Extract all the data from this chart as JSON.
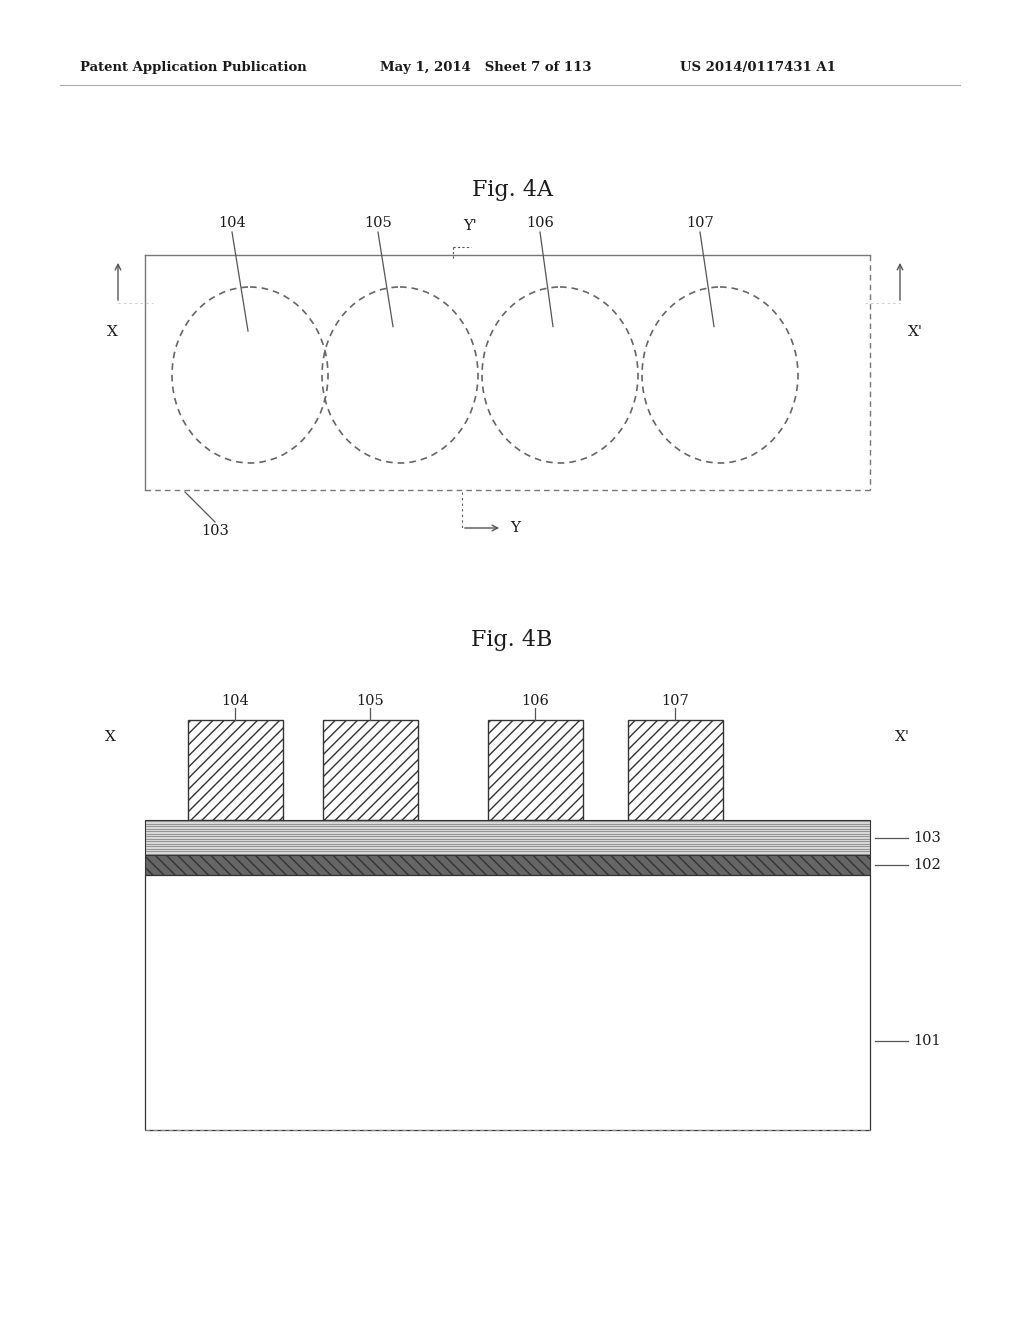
{
  "header_left": "Patent Application Publication",
  "header_mid": "May 1, 2014   Sheet 7 of 113",
  "header_right": "US 2014/0117431 A1",
  "fig4a_title": "Fig. 4A",
  "fig4b_title": "Fig. 4B",
  "bg_color": "#ffffff",
  "text_color": "#1a1a1a",
  "line_color": "#555555",
  "dark_line": "#333333"
}
